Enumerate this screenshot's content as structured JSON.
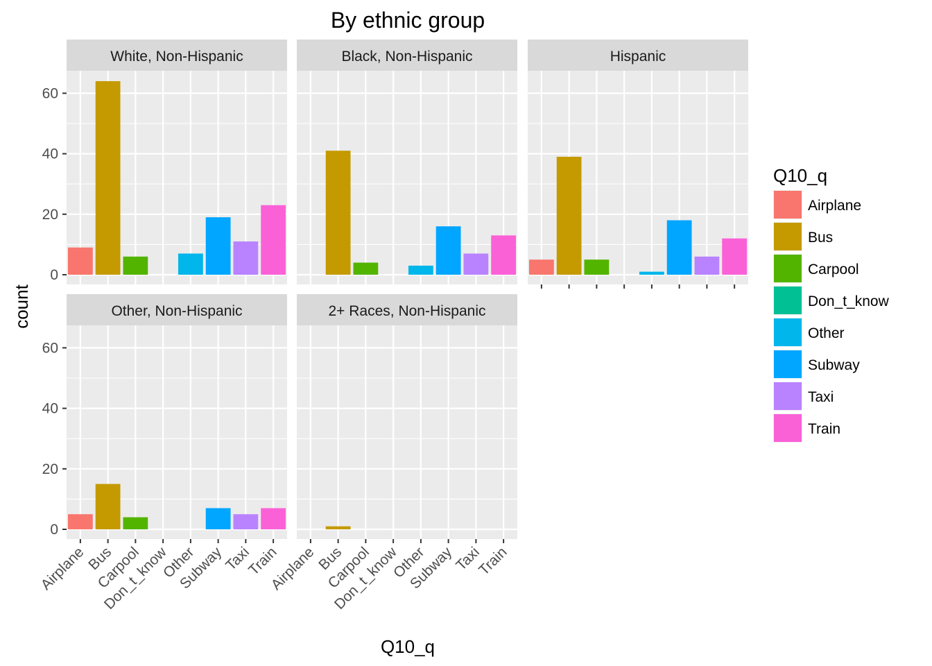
{
  "chart_data": {
    "type": "bar",
    "title": "By ethnic group",
    "xlabel": "Q10_q",
    "ylabel": "count",
    "ylim": [
      0,
      70
    ],
    "yticks": [
      0,
      20,
      40,
      60
    ],
    "categories": [
      "Airplane",
      "Bus",
      "Carpool",
      "Don_t_know",
      "Other",
      "Subway",
      "Taxi",
      "Train"
    ],
    "colors": {
      "Airplane": "#F8766D",
      "Bus": "#C49A00",
      "Carpool": "#53B400",
      "Don_t_know": "#00C094",
      "Other": "#00B6EB",
      "Subway": "#00A6FF",
      "Taxi": "#B983FF",
      "Train": "#FB61D7"
    },
    "panel_background": "#EBEBEB",
    "strip_background": "#D9D9D9",
    "grid": true,
    "legend": {
      "title": "Q10_q",
      "position": "right",
      "entries": [
        "Airplane",
        "Bus",
        "Carpool",
        "Don_t_know",
        "Other",
        "Subway",
        "Taxi",
        "Train"
      ]
    },
    "facets": [
      {
        "name": "White, Non-Hispanic",
        "values": [
          9,
          64,
          6,
          0,
          7,
          19,
          11,
          23
        ]
      },
      {
        "name": "Black, Non-Hispanic",
        "values": [
          0,
          41,
          4,
          0,
          3,
          16,
          7,
          13
        ]
      },
      {
        "name": "Hispanic",
        "values": [
          5,
          39,
          5,
          0,
          1,
          18,
          6,
          12
        ]
      },
      {
        "name": "Other, Non-Hispanic",
        "values": [
          5,
          15,
          4,
          0,
          0,
          7,
          5,
          7
        ]
      },
      {
        "name": "2+ Races, Non-Hispanic",
        "values": [
          0,
          1,
          0,
          0,
          0,
          0,
          0,
          0
        ]
      }
    ]
  }
}
